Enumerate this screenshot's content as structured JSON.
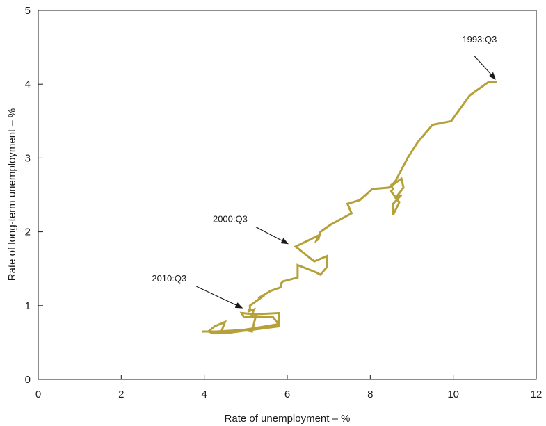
{
  "chart_data": {
    "type": "line",
    "title": "",
    "xlabel": "Rate of unemployment – %",
    "ylabel": "Rate of long-term unemployment – %",
    "xlim": [
      0,
      12
    ],
    "ylim": [
      0,
      5
    ],
    "xticks": [
      "0",
      "2",
      "4",
      "6",
      "8",
      "10",
      "12"
    ],
    "yticks": [
      "0",
      "1",
      "2",
      "3",
      "4",
      "5"
    ],
    "grid": false,
    "line_color": "#b5a03a",
    "series": [
      {
        "x": [
          11.05,
          10.85,
          10.4,
          9.95,
          9.5,
          9.15,
          8.9,
          8.6,
          8.45,
          8.05,
          7.75,
          7.45,
          7.55,
          7.05,
          6.8,
          6.75,
          6.7,
          6.75,
          6.2,
          6.65,
          6.95,
          6.95,
          6.8,
          6.7,
          6.25,
          6.25,
          5.9,
          5.85,
          5.85,
          5.6,
          5.3,
          5.45,
          5.1,
          5.1,
          5.05,
          5.2,
          5.15,
          5.8,
          5.8,
          4.7,
          4.4,
          4.5,
          4.25,
          4.1,
          4.25,
          4.2,
          3.95,
          4.3,
          4.95,
          5.15,
          5.25,
          4.9,
          4.95,
          5.65,
          5.75,
          5.8,
          4.55,
          4.15
        ],
        "y": [
          4.03,
          4.03,
          3.85,
          3.5,
          3.45,
          3.22,
          3.0,
          2.68,
          2.6,
          2.58,
          2.43,
          2.38,
          2.25,
          2.1,
          2.0,
          1.9,
          1.88,
          1.95,
          1.8,
          1.6,
          1.67,
          1.52,
          1.42,
          1.45,
          1.55,
          1.38,
          1.33,
          1.3,
          1.25,
          1.2,
          1.1,
          1.14,
          1.0,
          0.95,
          0.92,
          0.95,
          0.88,
          0.9,
          0.75,
          0.65,
          0.63,
          0.78,
          0.72,
          0.65,
          0.62,
          0.65,
          0.65,
          0.65,
          0.67,
          0.65,
          0.88,
          0.9,
          0.85,
          0.85,
          0.78,
          0.72,
          0.63,
          0.63
        ]
      },
      {
        "x": [
          8.45,
          8.75,
          8.8,
          8.6,
          8.75,
          8.55,
          8.55,
          8.55,
          8.7,
          8.5,
          8.55,
          8.5,
          8.45
        ],
        "y": [
          2.6,
          2.72,
          2.6,
          2.45,
          2.5,
          2.38,
          2.23,
          2.23,
          2.4,
          2.55,
          2.58,
          2.63,
          2.6
        ]
      }
    ],
    "annotations": [
      {
        "text": "1993:Q3",
        "x": 11.05,
        "y": 4.05
      },
      {
        "text": "2000:Q3",
        "x": 6.05,
        "y": 1.82
      },
      {
        "text": "2010:Q3",
        "x": 4.95,
        "y": 0.95
      }
    ]
  }
}
